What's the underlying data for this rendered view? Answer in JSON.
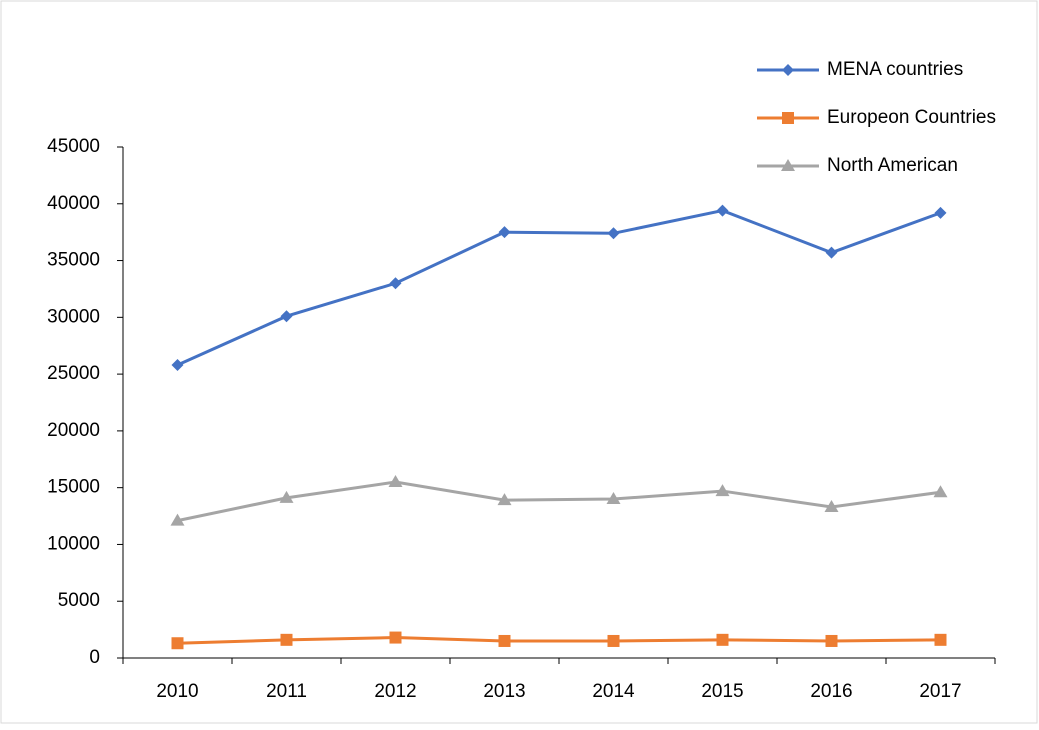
{
  "chart_data": {
    "type": "line",
    "categories": [
      "2010",
      "2011",
      "2012",
      "2013",
      "2014",
      "2015",
      "2016",
      "2017"
    ],
    "series": [
      {
        "name": "MENA countries",
        "color": "#4472c4",
        "marker": "diamond",
        "values": [
          25800,
          30100,
          33000,
          37500,
          37400,
          39400,
          35700,
          39200
        ]
      },
      {
        "name": "Europeon Countries",
        "color": "#ed7d31",
        "marker": "square",
        "values": [
          1300,
          1600,
          1800,
          1500,
          1500,
          1600,
          1500,
          1600
        ]
      },
      {
        "name": "North American",
        "color": "#a5a5a5",
        "marker": "triangle",
        "values": [
          12100,
          14100,
          15500,
          13900,
          14000,
          14700,
          13300,
          14600
        ]
      }
    ],
    "ylim": [
      0,
      45000
    ],
    "yticks": [
      0,
      5000,
      10000,
      15000,
      20000,
      25000,
      30000,
      35000,
      40000,
      45000
    ],
    "grid": false,
    "legend": "top-right"
  }
}
